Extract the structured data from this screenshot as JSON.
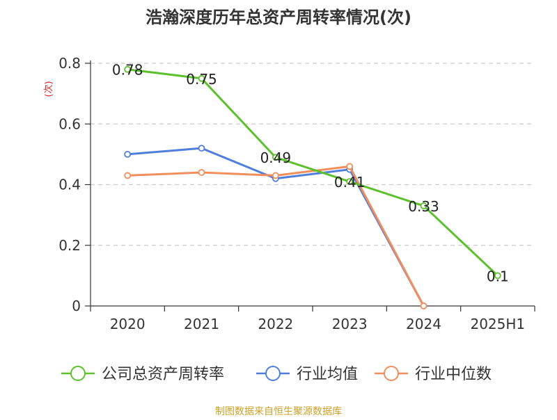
{
  "chart_data": {
    "type": "line",
    "title": "浩瀚深度历年总资产周转率情况(次)",
    "ylabel": "(次)",
    "categories": [
      "2020",
      "2021",
      "2022",
      "2023",
      "2024",
      "2025H1"
    ],
    "ylim": [
      0,
      0.8
    ],
    "yticks": [
      0,
      0.2,
      0.4,
      0.6,
      0.8
    ],
    "ytick_labels": [
      "0",
      "0.2",
      "0.4",
      "0.6",
      "0.8"
    ],
    "grid": true,
    "legend_position": "bottom",
    "series": [
      {
        "name": "公司总资产周转率",
        "color": "#5dc02d",
        "values": [
          0.78,
          0.75,
          0.49,
          0.41,
          0.33,
          0.1
        ],
        "labels": [
          "0.78",
          "0.75",
          "0.49",
          "0.41",
          "0.33",
          "0.1"
        ]
      },
      {
        "name": "行业均值",
        "color": "#4f7fdb",
        "values": [
          0.5,
          0.52,
          0.42,
          0.45,
          0,
          null
        ],
        "labels": []
      },
      {
        "name": "行业中位数",
        "color": "#f28e5c",
        "values": [
          0.43,
          0.44,
          0.43,
          0.46,
          0,
          null
        ],
        "labels": []
      }
    ]
  },
  "source": "制图数据来自恒生聚源数据库",
  "colors": {
    "title": "#333333",
    "ylabel": "#d62728",
    "axis": "#333333",
    "grid": "#cccccc",
    "source": "#c9a227"
  }
}
